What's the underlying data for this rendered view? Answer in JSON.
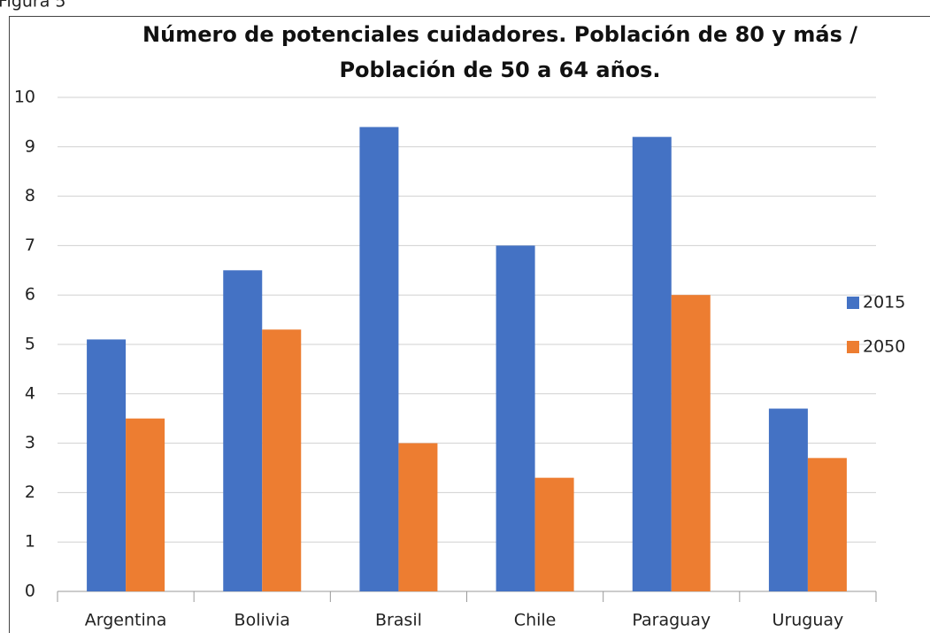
{
  "caption": "Figura 5",
  "chart_data": {
    "type": "bar",
    "title": [
      "Número de potenciales cuidadores. Población de 80 y más /",
      "Población de 50 a 64 años."
    ],
    "categories": [
      "Argentina",
      "Bolivia",
      "Brasil",
      "Chile",
      "Paraguay",
      "Uruguay"
    ],
    "series": [
      {
        "name": "2015",
        "color": "#4472c4",
        "values": [
          5.1,
          6.5,
          9.4,
          7.0,
          9.2,
          3.7
        ]
      },
      {
        "name": "2050",
        "color": "#ed7d31",
        "values": [
          3.5,
          5.3,
          3.0,
          2.3,
          6.0,
          2.7
        ]
      }
    ],
    "ylim": [
      0,
      10
    ],
    "yticks": [
      0,
      1,
      2,
      3,
      4,
      5,
      6,
      7,
      8,
      9,
      10
    ],
    "grid": true,
    "legend": "right"
  }
}
